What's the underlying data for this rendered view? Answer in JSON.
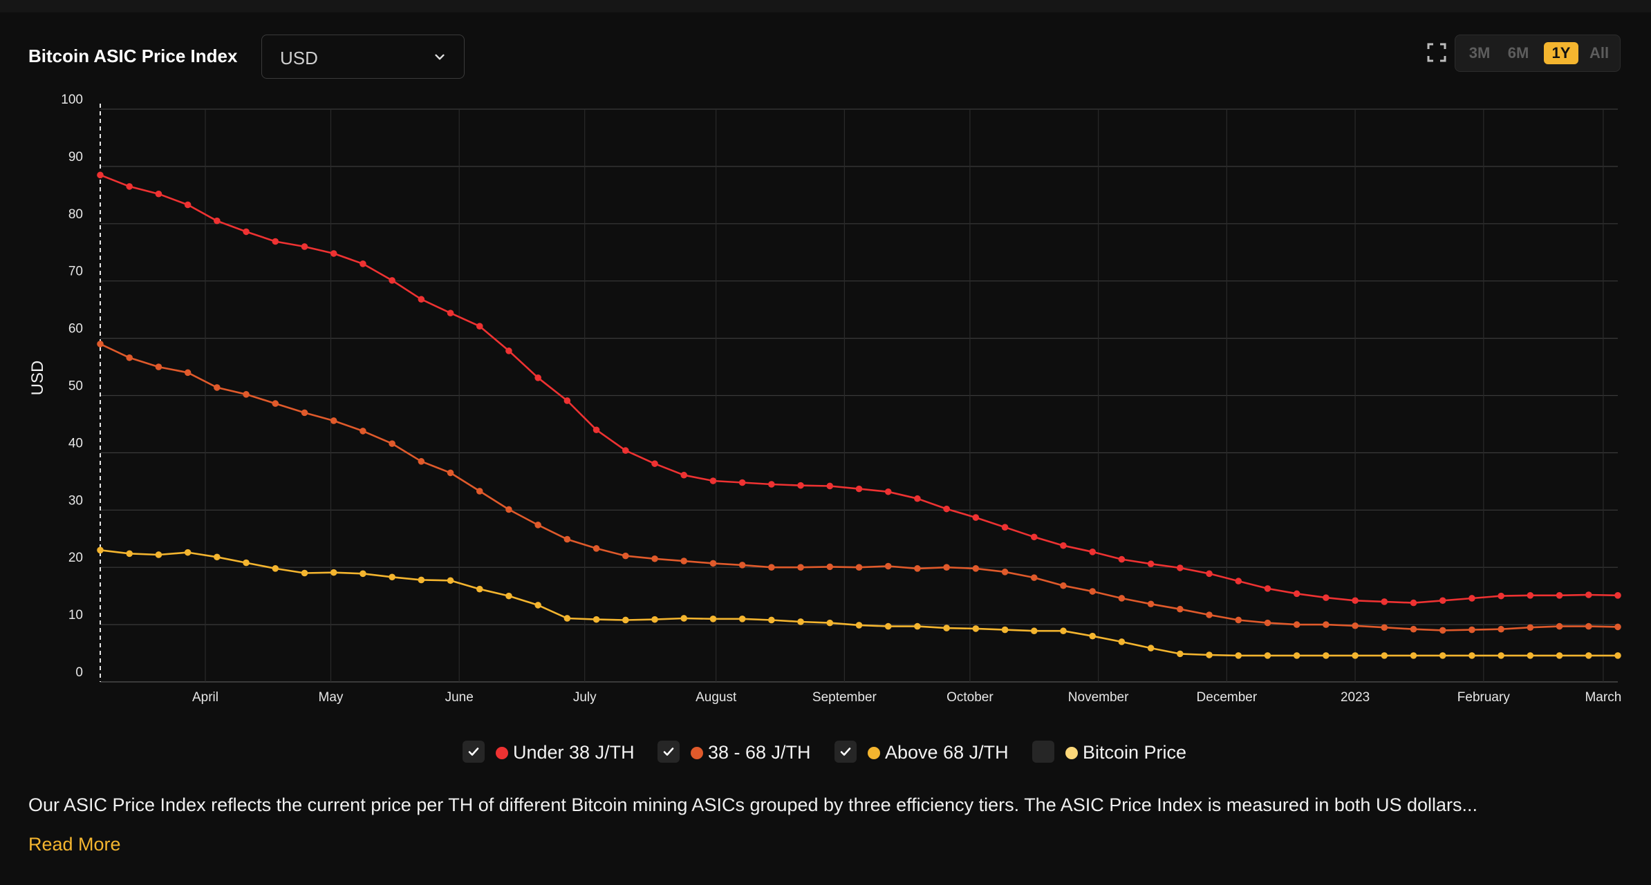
{
  "header": {
    "title": "Bitcoin ASIC Price Index",
    "currency": {
      "selected": "USD"
    },
    "ranges": [
      {
        "label": "3M",
        "active": false
      },
      {
        "label": "6M",
        "active": false
      },
      {
        "label": "1Y",
        "active": true
      },
      {
        "label": "All",
        "active": false
      }
    ]
  },
  "chart_data": {
    "type": "line",
    "title": "Bitcoin ASIC Price Index",
    "xlabel": "",
    "ylabel": "USD",
    "ylim": [
      0,
      100
    ],
    "yticks": [
      0,
      10,
      20,
      30,
      40,
      50,
      60,
      70,
      80,
      90,
      100
    ],
    "grid": true,
    "x_tick_labels": [
      "April",
      "May",
      "June",
      "July",
      "August",
      "September",
      "October",
      "November",
      "December",
      "2023",
      "February",
      "March"
    ],
    "x_tick_positions": [
      3.6,
      7.9,
      12.3,
      16.6,
      21.1,
      25.5,
      29.8,
      34.2,
      38.6,
      43.0,
      47.4,
      51.5
    ],
    "x_count": 53,
    "series": [
      {
        "name": "Under 38 J/TH",
        "color": "#ee3232",
        "values": [
          88.5,
          86.5,
          85.2,
          83.3,
          80.5,
          78.6,
          76.9,
          76.0,
          74.8,
          73.0,
          70.1,
          66.8,
          64.4,
          62.1,
          57.8,
          53.1,
          49.1,
          44.0,
          40.4,
          38.1,
          36.1,
          35.1,
          34.8,
          34.5,
          34.3,
          34.2,
          33.7,
          33.2,
          32.0,
          30.2,
          28.7,
          27.0,
          25.3,
          23.8,
          22.7,
          21.4,
          20.6,
          19.9,
          18.9,
          17.6,
          16.3,
          15.4,
          14.7,
          14.2,
          14.0,
          13.8,
          14.2,
          14.6,
          15.0,
          15.1,
          15.1,
          15.2,
          15.1
        ]
      },
      {
        "name": "38 - 68 J/TH",
        "color": "#e05a2b",
        "values": [
          59.0,
          56.6,
          55.0,
          54.0,
          51.4,
          50.2,
          48.6,
          47.0,
          45.6,
          43.8,
          41.6,
          38.5,
          36.5,
          33.3,
          30.1,
          27.4,
          24.9,
          23.3,
          22.0,
          21.5,
          21.1,
          20.7,
          20.4,
          20.0,
          20.0,
          20.1,
          20.0,
          20.2,
          19.8,
          20.0,
          19.8,
          19.2,
          18.2,
          16.8,
          15.8,
          14.6,
          13.6,
          12.7,
          11.7,
          10.8,
          10.3,
          10.0,
          10.0,
          9.8,
          9.5,
          9.2,
          9.0,
          9.1,
          9.2,
          9.5,
          9.7,
          9.7,
          9.6
        ]
      },
      {
        "name": "Above 68 J/TH",
        "color": "#f4b52f",
        "values": [
          23.0,
          22.4,
          22.2,
          22.6,
          21.8,
          20.8,
          19.8,
          19.0,
          19.1,
          18.9,
          18.3,
          17.8,
          17.7,
          16.2,
          15.0,
          13.4,
          11.1,
          10.9,
          10.8,
          10.9,
          11.1,
          11.0,
          11.0,
          10.8,
          10.5,
          10.3,
          9.9,
          9.7,
          9.7,
          9.4,
          9.3,
          9.1,
          8.9,
          8.9,
          8.0,
          7.0,
          5.9,
          4.9,
          4.7,
          4.6,
          4.6,
          4.6,
          4.6,
          4.6,
          4.6,
          4.6,
          4.6,
          4.6,
          4.6,
          4.6,
          4.6,
          4.6,
          4.6
        ]
      },
      {
        "name": "Bitcoin Price",
        "color": "#fcd87a",
        "values": []
      }
    ]
  },
  "legend": [
    {
      "label": "Under 38 J/TH",
      "checked": true,
      "color": "#ee3232"
    },
    {
      "label": "38 - 68 J/TH",
      "checked": true,
      "color": "#e05a2b"
    },
    {
      "label": "Above 68 J/TH",
      "checked": true,
      "color": "#f4b52f"
    },
    {
      "label": "Bitcoin Price",
      "checked": false,
      "color": "#fcd87a"
    }
  ],
  "description": "Our ASIC Price Index reflects the current price per TH of different Bitcoin mining ASICs grouped by three efficiency tiers. The ASIC Price Index is measured in both US dollars...",
  "read_more": "Read More"
}
